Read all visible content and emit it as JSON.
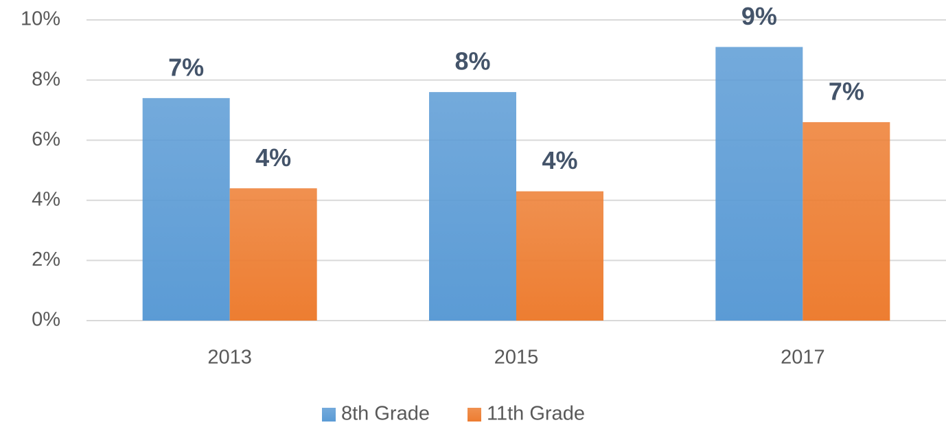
{
  "chart_data": {
    "type": "bar",
    "categories": [
      "2013",
      "2015",
      "2017"
    ],
    "series": [
      {
        "name": "8th Grade",
        "color": "#5b9bd5",
        "values": [
          7.4,
          7.6,
          9.1
        ],
        "value_labels": [
          "7%",
          "8%",
          "9%"
        ]
      },
      {
        "name": "11th Grade",
        "color": "#ed7d31",
        "values": [
          4.4,
          4.3,
          6.6
        ],
        "value_labels": [
          "4%",
          "4%",
          "7%"
        ]
      }
    ],
    "ylim": [
      0,
      10
    ],
    "yticks": [
      {
        "value": 0,
        "label": "0%"
      },
      {
        "value": 2,
        "label": "2%"
      },
      {
        "value": 4,
        "label": "4%"
      },
      {
        "value": 6,
        "label": "6%"
      },
      {
        "value": 8,
        "label": "8%"
      },
      {
        "value": 10,
        "label": "10%"
      }
    ],
    "grid": true,
    "legend": "bottom"
  }
}
